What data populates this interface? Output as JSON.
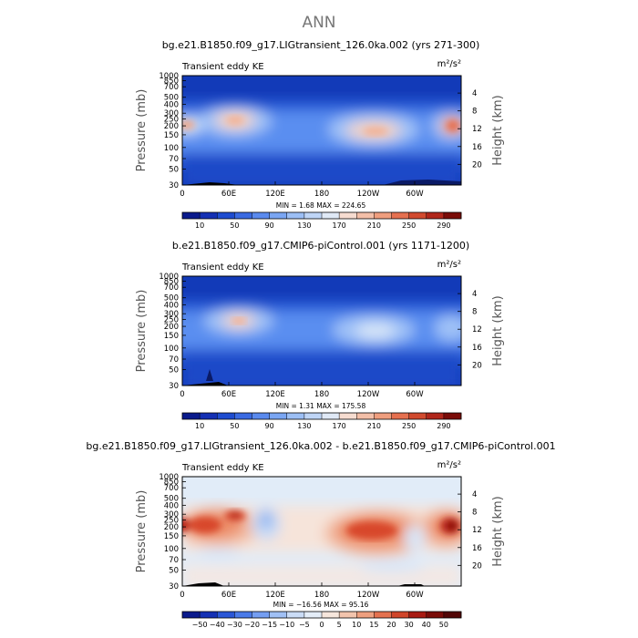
{
  "page": {
    "main_title": "ANN"
  },
  "units_label": "m²/s²",
  "panel_left_label": "Transient eddy KE",
  "axis": {
    "ylabel": "Pressure (mb)",
    "y2label": "Height (km)",
    "pressure_ticks": [
      "30",
      "50",
      "70",
      "100",
      "150",
      "200",
      "250",
      "300",
      "400",
      "500",
      "700",
      "850",
      "1000"
    ],
    "height_ticks": [
      "20",
      "16",
      "12",
      "8",
      "4"
    ],
    "lon_ticks": [
      "0",
      "60E",
      "120E",
      "180",
      "120W",
      "60W"
    ]
  },
  "chart_data": [
    {
      "type": "heatmap",
      "title": "bg.e21.B1850.f09_g17.LIGtransient_126.0ka.002 (yrs 271-300)",
      "stats": "MIN =    1.68   MAX = 224.65",
      "min": 1.68,
      "max": 224.65,
      "colorbar_labels": [
        "10",
        "50",
        "90",
        "130",
        "170",
        "210",
        "250",
        "290"
      ],
      "colorbar_levels": [
        10,
        30,
        50,
        70,
        90,
        110,
        130,
        150,
        170,
        190,
        210,
        230,
        250,
        270,
        290
      ]
    },
    {
      "type": "heatmap",
      "title": "b.e21.B1850.f09_g17.CMIP6-piControl.001 (yrs 1171-1200)",
      "stats": "MIN =    1.31   MAX = 175.58",
      "min": 1.31,
      "max": 175.58,
      "colorbar_labels": [
        "10",
        "50",
        "90",
        "130",
        "170",
        "210",
        "250",
        "290"
      ],
      "colorbar_levels": [
        10,
        30,
        50,
        70,
        90,
        110,
        130,
        150,
        170,
        190,
        210,
        230,
        250,
        270,
        290
      ]
    },
    {
      "type": "heatmap",
      "title": "bg.e21.B1850.f09_g17.LIGtransient_126.0ka.002 - b.e21.B1850.f09_g17.CMIP6-piControl.001",
      "stats": "MIN = −16.56   MAX =  95.16",
      "min": -16.56,
      "max": 95.16,
      "colorbar_labels": [
        "−50",
        "−40",
        "−30",
        "−20",
        "−15",
        "−10",
        "−5",
        "0",
        "5",
        "10",
        "15",
        "20",
        "30",
        "40",
        "50"
      ],
      "colorbar_levels": [
        -50,
        -40,
        -30,
        -20,
        -15,
        -10,
        -5,
        0,
        5,
        10,
        15,
        20,
        30,
        40,
        50
      ]
    }
  ]
}
